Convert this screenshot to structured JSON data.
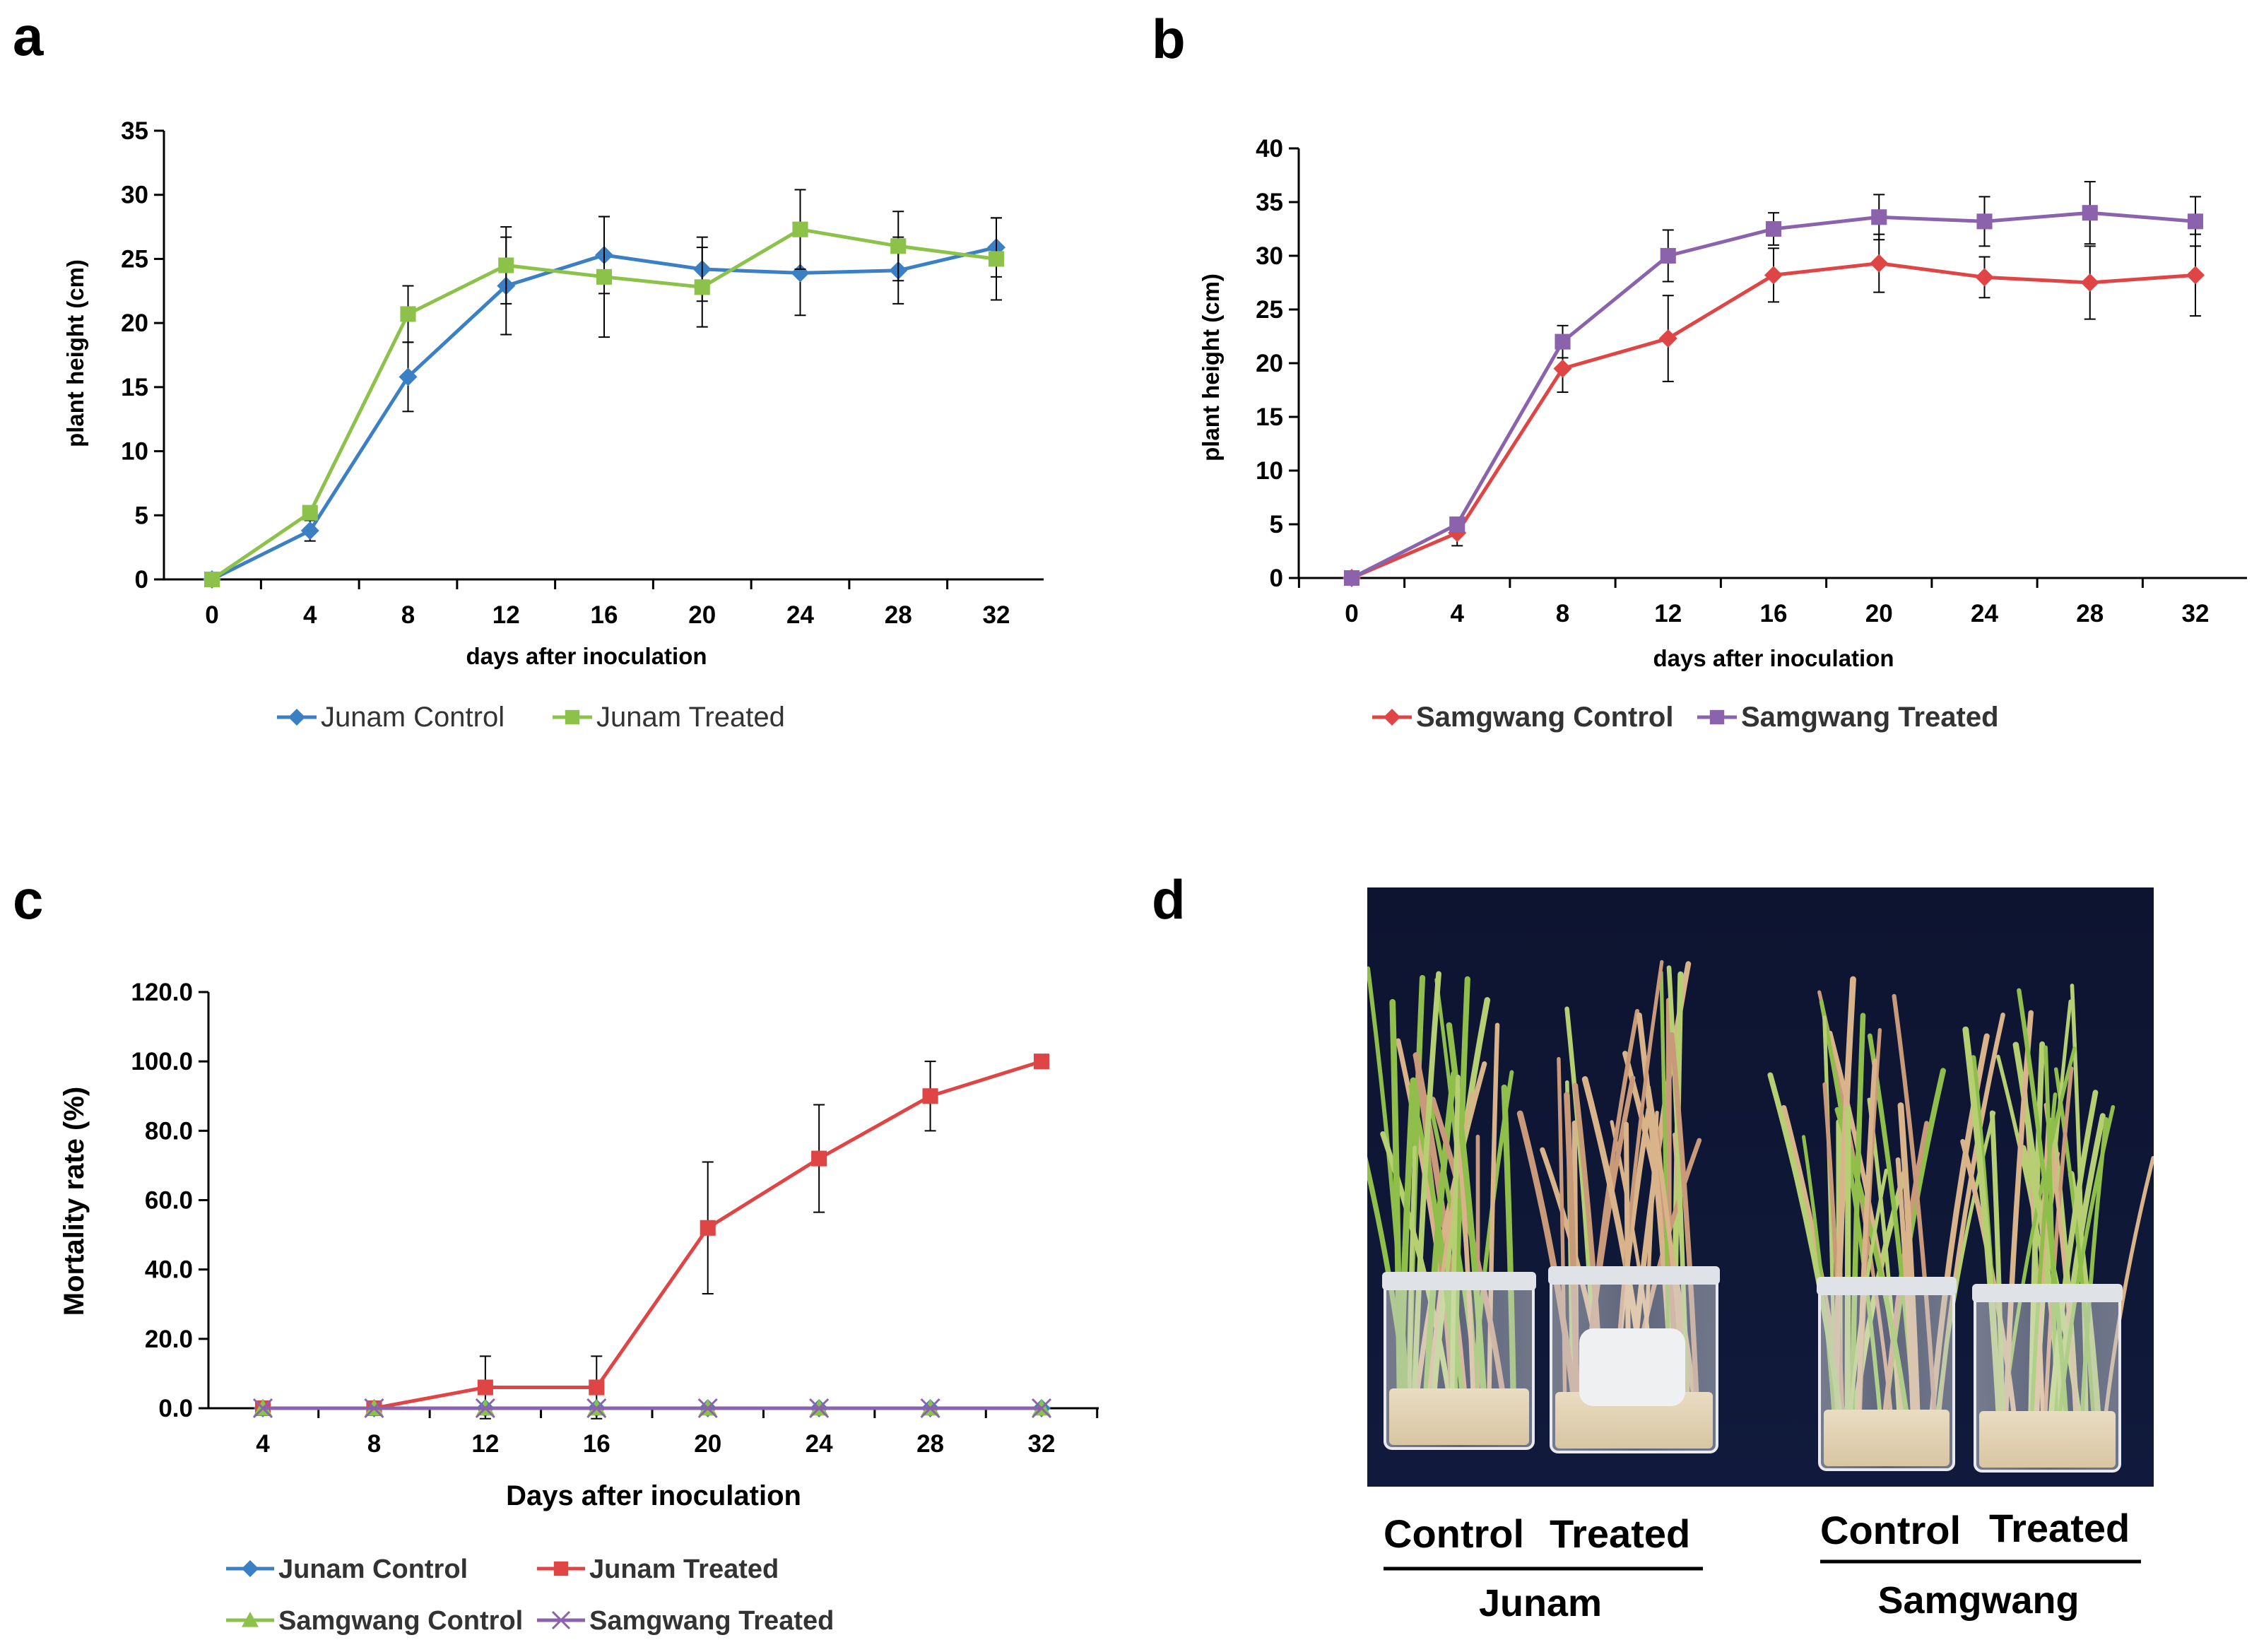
{
  "panel_labels": [
    "a",
    "b",
    "c",
    "d"
  ],
  "colors": {
    "junam_control": "#3b7fc4",
    "junam_treated": "#8cc24a",
    "samgwang_control": "#e04545",
    "samgwang_treated": "#8b63ad",
    "axis": "#000000"
  },
  "chart_data": [
    {
      "panel": "a",
      "type": "line",
      "xlabel": "days after inoculation",
      "ylabel": "plant height (cm)",
      "ylim": [
        0,
        35
      ],
      "yticks": [
        0,
        5,
        10,
        15,
        20,
        25,
        30,
        35
      ],
      "categories": [
        0,
        4,
        8,
        12,
        16,
        20,
        24,
        28,
        32
      ],
      "series": [
        {
          "name": "Junam Control",
          "marker": "diamond",
          "color_key": "junam_control",
          "values": [
            0,
            3.8,
            15.8,
            22.9,
            25.3,
            24.2,
            23.9,
            24.1,
            25.9
          ],
          "errors": [
            0,
            0.8,
            2.7,
            3.8,
            3.0,
            2.5,
            3.3,
            2.6,
            2.3
          ]
        },
        {
          "name": "Junam Treated",
          "marker": "square",
          "color_key": "junam_treated",
          "values": [
            0,
            5.2,
            20.7,
            24.5,
            23.6,
            22.8,
            27.3,
            26.0,
            25.0
          ],
          "errors": [
            0,
            0.5,
            2.2,
            3.0,
            4.7,
            3.1,
            3.1,
            2.7,
            3.2
          ]
        }
      ]
    },
    {
      "panel": "b",
      "type": "line",
      "xlabel": "days after inoculation",
      "ylabel": "plant height (cm)",
      "ylim": [
        0,
        40
      ],
      "yticks": [
        0,
        5,
        10,
        15,
        20,
        25,
        30,
        35,
        40
      ],
      "categories": [
        0,
        4,
        8,
        12,
        16,
        20,
        24,
        28,
        32
      ],
      "series": [
        {
          "name": "Samgwang Control",
          "marker": "diamond",
          "color_key": "samgwang_control",
          "values": [
            0,
            4.2,
            19.5,
            22.3,
            28.2,
            29.3,
            28.0,
            27.5,
            28.2
          ],
          "errors": [
            0,
            1.2,
            2.2,
            4.0,
            2.5,
            2.7,
            1.9,
            3.4,
            3.8
          ]
        },
        {
          "name": "Samgwang Treated",
          "marker": "square",
          "color_key": "samgwang_treated",
          "values": [
            0,
            5.0,
            22.0,
            30.0,
            32.5,
            33.6,
            33.2,
            34.0,
            33.2
          ],
          "errors": [
            0,
            0.6,
            1.5,
            2.4,
            1.5,
            2.1,
            2.3,
            2.9,
            2.3
          ]
        }
      ]
    },
    {
      "panel": "c",
      "type": "line",
      "xlabel": "Days after inoculation",
      "ylabel": "Mortality rate (%)",
      "ylim": [
        0,
        120
      ],
      "yticks": [
        "0.0",
        "20.0",
        "40.0",
        "60.0",
        "80.0",
        "100.0",
        "120.0"
      ],
      "categories": [
        4,
        8,
        12,
        16,
        20,
        24,
        28,
        32
      ],
      "series": [
        {
          "name": "Junam Control",
          "marker": "diamond",
          "color_key": "junam_control",
          "values": [
            0,
            0,
            0,
            0,
            0,
            0,
            0,
            0
          ],
          "errors": [
            0,
            0,
            0,
            0,
            0,
            0,
            0,
            0
          ]
        },
        {
          "name": "Junam Treated",
          "marker": "square",
          "color_key": "samgwang_control",
          "values": [
            0,
            0,
            6,
            6,
            52,
            72,
            90,
            100
          ],
          "errors": [
            0,
            0,
            9,
            9,
            19,
            15.5,
            10,
            0
          ]
        },
        {
          "name": "Samgwang Control",
          "marker": "triangle",
          "color_key": "junam_treated",
          "values": [
            0,
            0,
            0,
            0,
            0,
            0,
            0,
            0
          ],
          "errors": [
            0,
            0,
            0,
            0,
            0,
            0,
            0,
            0
          ]
        },
        {
          "name": "Samgwang Treated",
          "marker": "x",
          "color_key": "samgwang_treated",
          "values": [
            0,
            0,
            0,
            0,
            0,
            0,
            0,
            0
          ],
          "errors": [
            0,
            0,
            0,
            0,
            0,
            0,
            0,
            0
          ]
        }
      ]
    }
  ],
  "photo": {
    "description_icon": "rice-seedlings-photo",
    "groups": [
      {
        "name": "Junam",
        "labels": [
          "Control",
          "Treated"
        ]
      },
      {
        "name": "Samgwang",
        "labels": [
          "Control",
          "Treated"
        ]
      }
    ]
  }
}
